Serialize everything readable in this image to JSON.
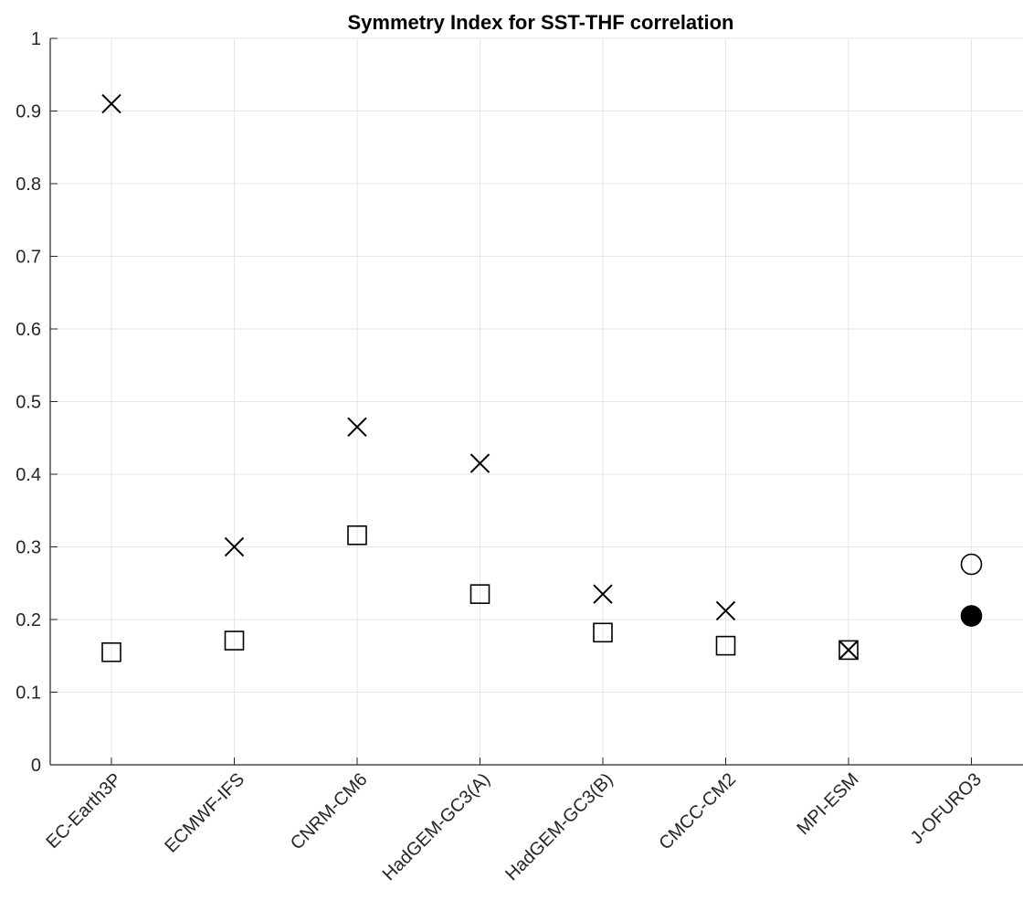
{
  "chart_data": {
    "type": "scatter",
    "title": "Symmetry Index for SST-THF correlation",
    "xlabel": "",
    "ylabel": "",
    "categories": [
      "EC-Earth3P",
      "ECMWF-IFS",
      "CNRM-CM6",
      "HadGEM-GC3(A)",
      "HadGEM-GC3(B)",
      "CMCC-CM2",
      "MPI-ESM",
      "J-OFURO3"
    ],
    "ylim": [
      0,
      1
    ],
    "yticks": [
      "0",
      "0.1",
      "0.2",
      "0.3",
      "0.4",
      "0.5",
      "0.6",
      "0.7",
      "0.8",
      "0.9",
      "1"
    ],
    "grid": true,
    "legend": "none",
    "series": [
      {
        "marker": "x",
        "values": [
          0.91,
          0.3,
          0.465,
          0.415,
          0.235,
          0.212,
          0.158,
          null
        ]
      },
      {
        "marker": "square",
        "values": [
          0.155,
          0.171,
          0.316,
          0.235,
          0.182,
          0.164,
          0.158,
          null
        ]
      },
      {
        "marker": "circle-open",
        "values": [
          null,
          null,
          null,
          null,
          null,
          null,
          null,
          0.276
        ]
      },
      {
        "marker": "circle-filled",
        "values": [
          null,
          null,
          null,
          null,
          null,
          null,
          null,
          0.205
        ]
      }
    ],
    "colors": {
      "marker": "#000000",
      "axis": "#262626",
      "grid": "#e6e6e6"
    }
  }
}
